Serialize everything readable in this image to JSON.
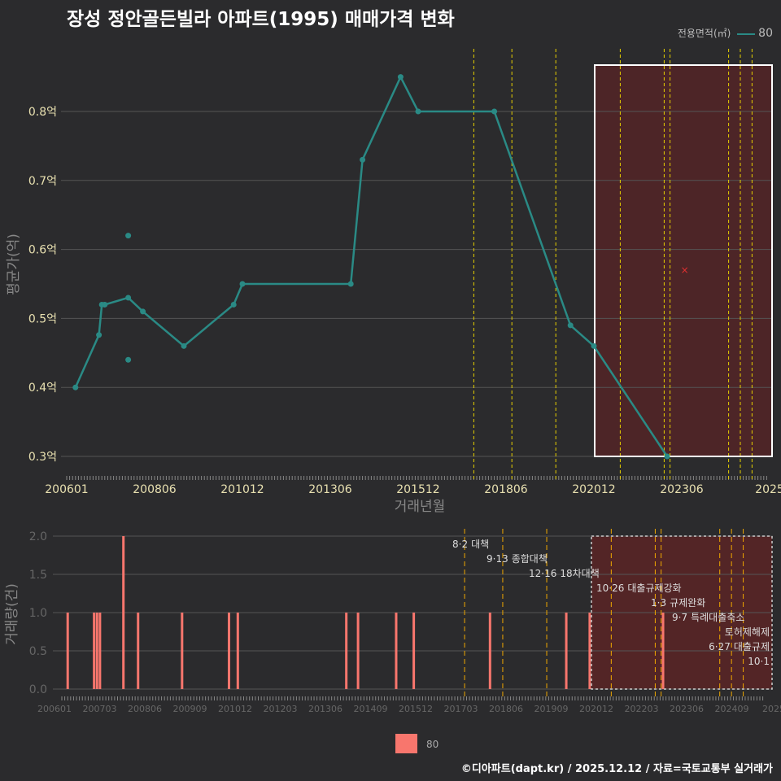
{
  "title": "장성 정안골든빌라 아파트(1995) 매매가격 변화",
  "footer": "©디아파트(dapt.kr) / 2025.12.12 / 자료=국토교통부 실거래가",
  "legend_top": {
    "title": "전용면적(㎡)",
    "item": "80"
  },
  "legend_bottom": {
    "item": "80"
  },
  "colors": {
    "line": "#2a8a85",
    "bar": "#f8766d",
    "bg": "#2b2b2d",
    "vline": "#e6d000"
  },
  "chart_data": [
    {
      "type": "line",
      "title": "장성 정안골든빌라 아파트(1995) 매매가격 변화",
      "xlabel": "거래년월",
      "ylabel": "평균가(억)",
      "yticks": [
        "0.3억",
        "0.4억",
        "0.5억",
        "0.6억",
        "0.7억",
        "0.8억"
      ],
      "ylim": [
        0.275,
        0.89
      ],
      "xticks": [
        "200601",
        "200806",
        "201012",
        "201306",
        "201512",
        "201806",
        "202012",
        "202306",
        "2025"
      ],
      "series": [
        {
          "name": "80",
          "points": [
            [
              "200604",
              0.4
            ],
            [
              "200612",
              0.476
            ],
            [
              "200701",
              0.52
            ],
            [
              "200702",
              0.52
            ],
            [
              "200710",
              0.53
            ],
            [
              "200803",
              0.51
            ],
            [
              "200905",
              0.46
            ],
            [
              "201010",
              0.52
            ],
            [
              "201101",
              0.55
            ],
            [
              "201402",
              0.55
            ],
            [
              "201406",
              0.73
            ],
            [
              "201507",
              0.85
            ],
            [
              "201601",
              0.8
            ],
            [
              "201803",
              0.8
            ],
            [
              "202005",
              0.49
            ],
            [
              "202101",
              0.46
            ],
            [
              "202302",
              0.3
            ]
          ]
        }
      ],
      "extra_points": [
        [
          "200710",
          0.62
        ],
        [
          "200710",
          0.44
        ]
      ],
      "marker_x": [
        "202308",
        0.57
      ],
      "policy_lines": [
        "201708",
        "201809",
        "201912",
        "202110",
        "202301",
        "202303",
        "202411",
        "202503",
        "202507"
      ],
      "highlight_range": [
        "202101",
        "202512"
      ]
    },
    {
      "type": "bar",
      "ylabel": "거래량(건)",
      "yticks": [
        "0.0",
        "0.5",
        "1.0",
        "1.5",
        "2.0"
      ],
      "ylim": [
        0,
        2
      ],
      "xticks": [
        "200601",
        "200703",
        "200806",
        "200909",
        "201012",
        "201203",
        "201306",
        "201409",
        "201512",
        "201703",
        "201806",
        "201909",
        "202012",
        "202203",
        "202306",
        "202409",
        "2025"
      ],
      "bars": [
        [
          "200603",
          1
        ],
        [
          "200612",
          1
        ],
        [
          "200701",
          1
        ],
        [
          "200702",
          1
        ],
        [
          "200710",
          2
        ],
        [
          "200803",
          1
        ],
        [
          "200906",
          1
        ],
        [
          "201010",
          1
        ],
        [
          "201101",
          1
        ],
        [
          "201402",
          1
        ],
        [
          "201406",
          1
        ],
        [
          "201507",
          1
        ],
        [
          "201601",
          1
        ],
        [
          "201803",
          1
        ],
        [
          "202005",
          1
        ],
        [
          "202101",
          1
        ],
        [
          "202302",
          1
        ]
      ],
      "annotations": [
        {
          "date": "8·2",
          "label": "대책"
        },
        {
          "date": "9·13",
          "label": "종합대책"
        },
        {
          "date": "12·16",
          "label": "18차대책"
        },
        {
          "date": "10·26",
          "label": "대출규제강화"
        },
        {
          "date": "1·3",
          "label": "규제완화"
        },
        {
          "date": "9·7",
          "label": "특례대출축소"
        },
        {
          "date": "",
          "label": "토허제해제"
        },
        {
          "date": "6·27",
          "label": "대출규제"
        },
        {
          "date": "10·1",
          "label": ""
        }
      ]
    }
  ]
}
